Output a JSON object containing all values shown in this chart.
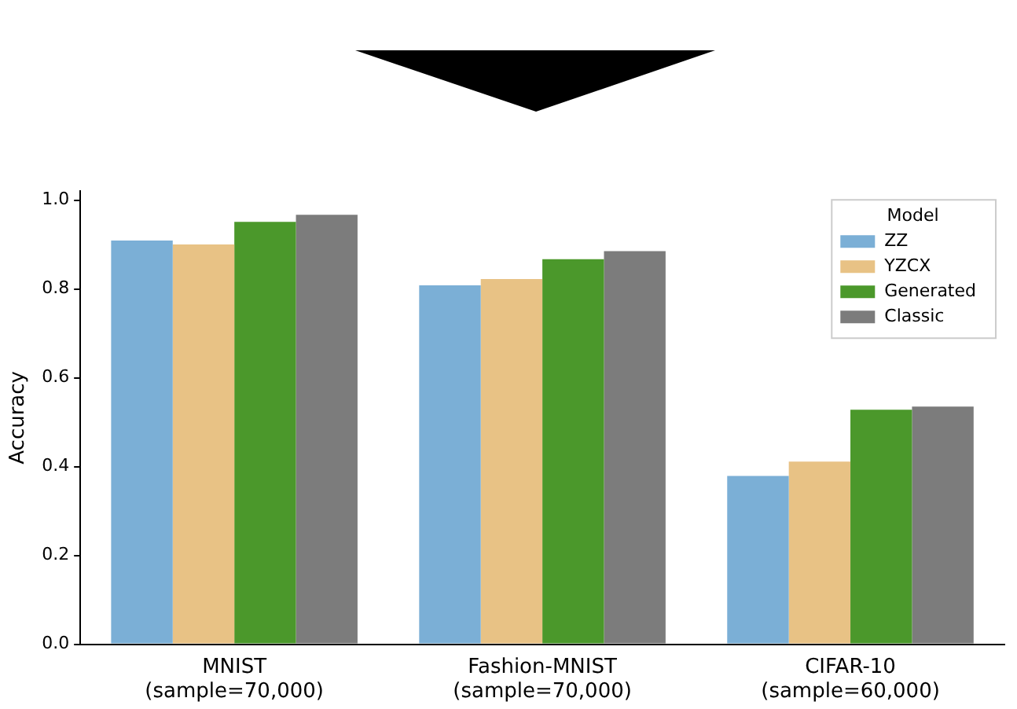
{
  "chart_data": {
    "type": "bar",
    "ylabel": "Accuracy",
    "legend_title": "Model",
    "categories": [
      "MNIST\n(sample=70,000)",
      "Fashion-MNIST\n(sample=70,000)",
      "CIFAR-10\n(sample=60,000)"
    ],
    "series": [
      {
        "name": "ZZ",
        "color": "#7bafd6",
        "values": [
          0.909,
          0.808,
          0.379
        ]
      },
      {
        "name": "YZCX",
        "color": "#e8c285",
        "values": [
          0.9,
          0.822,
          0.411
        ]
      },
      {
        "name": "Generated",
        "color": "#4b982b",
        "values": [
          0.951,
          0.867,
          0.528
        ]
      },
      {
        "name": "Classic",
        "color": "#7c7c7c",
        "values": [
          0.967,
          0.885,
          0.535
        ]
      }
    ],
    "ylim": [
      0,
      1.02
    ],
    "yticks": [
      {
        "value": 0,
        "label": "0.0"
      },
      {
        "value": 0.2,
        "label": "0.2"
      },
      {
        "value": 0.4,
        "label": "0.4"
      },
      {
        "value": 0.6,
        "label": "0.6"
      },
      {
        "value": 0.8,
        "label": "0.8"
      },
      {
        "value": 1,
        "label": "1.0"
      }
    ],
    "grid": false,
    "legend": "top right"
  }
}
